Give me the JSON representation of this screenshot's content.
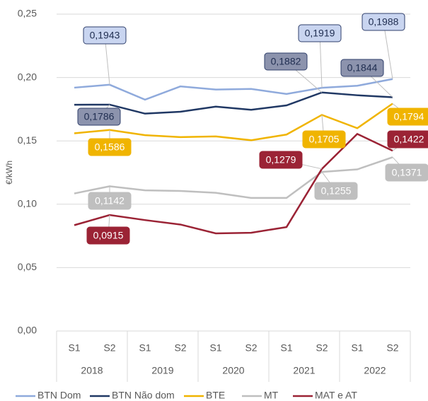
{
  "chart_data": {
    "type": "line",
    "y_label": "€/kWh",
    "categories": [
      "S1",
      "S2",
      "S1",
      "S2",
      "S1",
      "S2",
      "S1",
      "S2",
      "S1",
      "S2"
    ],
    "groups": [
      "2018",
      "2019",
      "2020",
      "2021",
      "2022"
    ],
    "ylim": [
      0,
      0.25
    ],
    "yticks": [
      {
        "value": 0,
        "label": "0,00"
      },
      {
        "value": 0.05,
        "label": "0,05"
      },
      {
        "value": 0.1,
        "label": "0,10"
      },
      {
        "value": 0.15,
        "label": "0,15"
      },
      {
        "value": 0.2,
        "label": "0,20"
      },
      {
        "value": 0.25,
        "label": "0,25"
      }
    ],
    "grid": true,
    "legend": "bottom",
    "series": [
      {
        "name": "BTN Dom",
        "color": "#8faadc",
        "values": [
          0.192,
          0.1943,
          0.1825,
          0.193,
          0.1905,
          0.191,
          0.187,
          0.1919,
          0.1935,
          0.1988
        ],
        "value_labels": [
          null,
          "0,1943",
          null,
          null,
          null,
          null,
          null,
          "0,1919",
          null,
          "0,1988"
        ]
      },
      {
        "name": "BTN Não dom",
        "color": "#203864",
        "values": [
          0.1785,
          0.1786,
          0.1715,
          0.173,
          0.177,
          0.1745,
          0.178,
          0.1882,
          0.186,
          0.1844
        ],
        "value_labels": [
          null,
          "0,1786",
          null,
          null,
          null,
          null,
          null,
          "0,1882",
          null,
          "0,1844"
        ]
      },
      {
        "name": "BTE",
        "color": "#f0b400",
        "values": [
          0.156,
          0.1586,
          0.1545,
          0.153,
          0.1535,
          0.1505,
          0.155,
          0.1705,
          0.16,
          0.1794
        ],
        "value_labels": [
          null,
          "0,1586",
          null,
          null,
          null,
          null,
          null,
          "0,1705",
          null,
          "0,1794"
        ]
      },
      {
        "name": "MT",
        "color": "#bfbfbf",
        "values": [
          0.1085,
          0.1142,
          0.111,
          0.1105,
          0.109,
          0.105,
          0.105,
          0.1255,
          0.1275,
          0.1371
        ],
        "value_labels": [
          null,
          "0,1142",
          null,
          null,
          null,
          null,
          null,
          "0,1255",
          null,
          "0,1371"
        ]
      },
      {
        "name": "MAT e AT",
        "color": "#9b2335",
        "values": [
          0.0835,
          0.0915,
          0.0875,
          0.084,
          0.077,
          0.0775,
          0.082,
          0.1279,
          0.1555,
          0.1422
        ],
        "value_labels": [
          null,
          "0,0915",
          null,
          null,
          null,
          null,
          null,
          "0,1279",
          null,
          "0,1422"
        ]
      }
    ]
  }
}
